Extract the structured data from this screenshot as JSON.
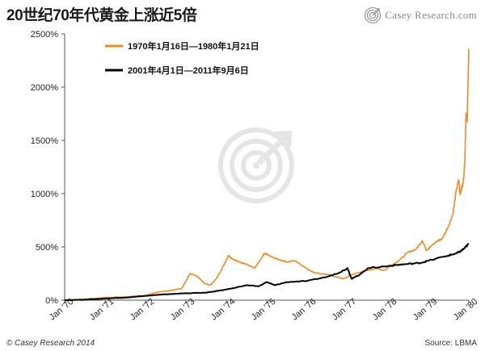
{
  "header": {
    "title": "20世纪70年代黄金上涨近5倍",
    "brand": "Casey Research.com"
  },
  "footer": {
    "copyright": "© Casey Research 2014",
    "source": "Source: LBMA"
  },
  "colors": {
    "series_1970s": "#f08a24",
    "series_2000s": "#000000",
    "axis": "#555555",
    "watermark": "#d8d8d8"
  },
  "chart_data": {
    "type": "line",
    "title": "20世纪70年代黄金上涨近5倍",
    "xlabel": "",
    "ylabel": "",
    "ylim": [
      0,
      2500
    ],
    "yticks": [
      0,
      500,
      1000,
      1500,
      2000,
      2500
    ],
    "ytick_labels": [
      "0%",
      "500%",
      "1000%",
      "1500%",
      "2000%",
      "2500%"
    ],
    "xlim": [
      0,
      10
    ],
    "xticks": [
      0,
      1,
      2,
      3,
      4,
      5,
      6,
      7,
      8,
      9,
      10
    ],
    "xtick_labels": [
      "Jan '70",
      "Jan '71",
      "Jan '72",
      "Jan '73",
      "Jan '74",
      "Jan '75",
      "Jan '76",
      "Jan '77",
      "Jan '78",
      "Jan '79",
      "Jan '80"
    ],
    "legend_position": "top-left",
    "grid": false,
    "series": [
      {
        "name": "1970年1月16日—1980年1月21日",
        "color": "#f08a24",
        "x": [
          0,
          0.5,
          1.0,
          1.5,
          2.0,
          2.3,
          2.6,
          2.9,
          3.1,
          3.3,
          3.45,
          3.6,
          3.75,
          3.9,
          4.05,
          4.15,
          4.3,
          4.5,
          4.7,
          4.85,
          4.95,
          5.1,
          5.3,
          5.5,
          5.7,
          5.9,
          6.1,
          6.3,
          6.5,
          6.7,
          6.9,
          7.1,
          7.3,
          7.5,
          7.7,
          7.9,
          8.1,
          8.3,
          8.5,
          8.7,
          8.85,
          8.95,
          9.05,
          9.2,
          9.35,
          9.5,
          9.6,
          9.7,
          9.75,
          9.78,
          9.82,
          9.86,
          9.9,
          9.93,
          9.96,
          9.98,
          10.0
        ],
        "y": [
          0,
          10,
          25,
          30,
          45,
          75,
          90,
          110,
          250,
          220,
          160,
          140,
          200,
          300,
          420,
          390,
          360,
          340,
          300,
          380,
          440,
          410,
          380,
          360,
          370,
          320,
          270,
          250,
          240,
          220,
          200,
          240,
          260,
          280,
          300,
          280,
          330,
          380,
          450,
          480,
          560,
          470,
          500,
          550,
          580,
          700,
          800,
          1050,
          1130,
          1000,
          1050,
          1100,
          1300,
          1750,
          1700,
          2050,
          2350
        ]
      },
      {
        "name": "2001年4月1日—2011年9月6日",
        "color": "#000000",
        "x": [
          0,
          0.5,
          1.0,
          1.5,
          2.0,
          2.5,
          3.0,
          3.5,
          4.0,
          4.5,
          4.8,
          5.0,
          5.2,
          5.5,
          6.0,
          6.5,
          6.8,
          7.0,
          7.1,
          7.3,
          7.5,
          8.0,
          8.2,
          8.5,
          8.8,
          9.0,
          9.5,
          9.7,
          9.8,
          9.9,
          10.0
        ],
        "y": [
          0,
          5,
          15,
          25,
          40,
          55,
          65,
          70,
          100,
          140,
          130,
          170,
          140,
          170,
          180,
          220,
          260,
          300,
          200,
          240,
          300,
          320,
          330,
          340,
          350,
          370,
          420,
          440,
          460,
          490,
          530
        ]
      }
    ]
  }
}
